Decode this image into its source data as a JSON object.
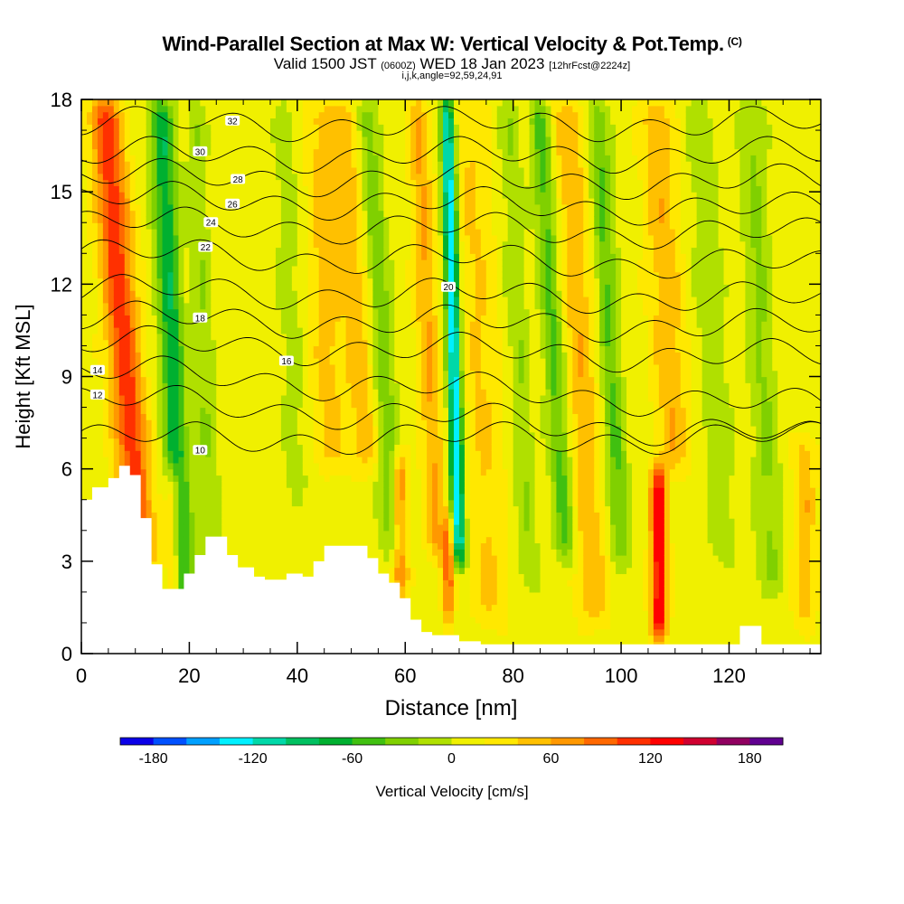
{
  "header": {
    "title": "Wind-Parallel Section at Max W: Vertical Velocity & Pot.Temp.",
    "copyright": "(C)",
    "valid_main": "Valid 1500 JST",
    "valid_z": "(0600Z)",
    "valid_date": "WED 18 Jan 2023",
    "valid_fcst": "[12hrFcst@2224z]",
    "indices": "i,j,k,angle=92,59,24,91"
  },
  "chart_data": {
    "type": "heatmap",
    "xlabel": "Distance [nm]",
    "ylabel": "Height [Kft MSL]",
    "xlim": [
      0,
      137
    ],
    "ylim": [
      0,
      18
    ],
    "x_ticks": [
      "0",
      "20",
      "40",
      "60",
      "80",
      "100",
      "120"
    ],
    "y_ticks": [
      "0",
      "3",
      "6",
      "9",
      "12",
      "15",
      "18"
    ],
    "colorbar": {
      "label": "Vertical Velocity [cm/s]",
      "ticks": [
        "-180",
        "-120",
        "-60",
        "0",
        "60",
        "120",
        "180"
      ],
      "range": [
        -200,
        200
      ],
      "colors": [
        "#0b00e8",
        "#0050ff",
        "#00a0ff",
        "#00f0ff",
        "#00d8a8",
        "#00c060",
        "#00b030",
        "#40c010",
        "#80d000",
        "#b0e000",
        "#f0f000",
        "#ffe800",
        "#ffc000",
        "#ff9800",
        "#ff6800",
        "#ff3000",
        "#ff0000",
        "#d00030",
        "#900060",
        "#600090"
      ]
    },
    "velocity_features": [
      {
        "x": 11,
        "z0": 3,
        "z1": 18,
        "slope": -0.45,
        "w": 100,
        "width": 3.0
      },
      {
        "x": 19,
        "z0": 1,
        "z1": 18,
        "slope": -0.25,
        "w": -90,
        "width": 2.2
      },
      {
        "x": 24,
        "z0": 3,
        "z1": 18,
        "slope": -0.2,
        "w": -30,
        "width": 2.0
      },
      {
        "x": 17,
        "z0": 1.5,
        "z1": 6,
        "slope": 0,
        "w": 70,
        "width": 1.4
      },
      {
        "x": 40,
        "z0": 5,
        "z1": 18,
        "slope": -0.2,
        "w": -20,
        "width": 2.5
      },
      {
        "x": 46,
        "z0": 6,
        "z1": 18,
        "slope": -0.15,
        "w": 35,
        "width": 3.0
      },
      {
        "x": 53,
        "z0": 6,
        "z1": 18,
        "slope": -0.35,
        "w": 40,
        "width": 3.0
      },
      {
        "x": 58,
        "z0": 3,
        "z1": 18,
        "slope": -0.35,
        "w": -50,
        "width": 2.2
      },
      {
        "x": 59,
        "z0": 2,
        "z1": 6.5,
        "slope": 0,
        "w": 75,
        "width": 1.5
      },
      {
        "x": 66,
        "z0": 3,
        "z1": 18,
        "slope": -0.25,
        "w": 50,
        "width": 2.0
      },
      {
        "x": 70,
        "z0": 3,
        "z1": 18,
        "slope": -0.15,
        "w": -150,
        "width": 1.3
      },
      {
        "x": 68,
        "z0": 1,
        "z1": 4.5,
        "slope": 0,
        "w": 80,
        "width": 1.0
      },
      {
        "x": 76,
        "z0": 1,
        "z1": 18,
        "slope": -0.25,
        "w": 30,
        "width": 3.5
      },
      {
        "x": 83,
        "z0": 2,
        "z1": 18,
        "slope": -0.25,
        "w": -30,
        "width": 2.0
      },
      {
        "x": 90,
        "z0": 3,
        "z1": 18,
        "slope": -0.35,
        "w": -60,
        "width": 2.0
      },
      {
        "x": 95,
        "z0": 1,
        "z1": 18,
        "slope": -0.3,
        "w": 45,
        "width": 3.0
      },
      {
        "x": 100,
        "z0": 3,
        "z1": 18,
        "slope": -0.3,
        "w": -55,
        "width": 2.0
      },
      {
        "x": 107,
        "z0": 0.5,
        "z1": 6,
        "slope": 0,
        "w": 125,
        "width": 1.5
      },
      {
        "x": 110,
        "z0": 6,
        "z1": 18,
        "slope": -0.3,
        "w": 45,
        "width": 3.0
      },
      {
        "x": 119,
        "z0": 3,
        "z1": 18,
        "slope": -0.3,
        "w": -25,
        "width": 3.0
      },
      {
        "x": 128,
        "z0": 2,
        "z1": 18,
        "slope": -0.25,
        "w": -35,
        "width": 2.5
      },
      {
        "x": 134,
        "z0": 1,
        "z1": 7,
        "slope": 0,
        "w": 45,
        "width": 2.0
      }
    ],
    "terrain": [
      [
        0,
        5.0
      ],
      [
        2,
        5.4
      ],
      [
        5,
        5.7
      ],
      [
        7,
        6.1
      ],
      [
        9,
        5.8
      ],
      [
        11,
        4.4
      ],
      [
        13,
        2.9
      ],
      [
        15,
        2.1
      ],
      [
        17,
        2.1
      ],
      [
        19,
        2.6
      ],
      [
        21,
        3.2
      ],
      [
        23,
        3.8
      ],
      [
        25,
        3.8
      ],
      [
        27,
        3.2
      ],
      [
        29,
        2.8
      ],
      [
        32,
        2.5
      ],
      [
        34,
        2.4
      ],
      [
        36,
        2.4
      ],
      [
        38,
        2.6
      ],
      [
        41,
        2.5
      ],
      [
        43,
        3.0
      ],
      [
        45,
        3.5
      ],
      [
        50,
        3.5
      ],
      [
        53,
        3.1
      ],
      [
        55,
        2.6
      ],
      [
        57,
        2.3
      ],
      [
        59,
        1.8
      ],
      [
        61,
        1.1
      ],
      [
        63,
        0.7
      ],
      [
        65,
        0.6
      ],
      [
        68,
        0.6
      ],
      [
        70,
        0.4
      ],
      [
        74,
        0.3
      ],
      [
        118,
        0.3
      ],
      [
        122,
        0.9
      ],
      [
        125,
        0.9
      ],
      [
        126,
        0.3
      ],
      [
        137,
        0.3
      ]
    ],
    "theta_contours": [
      {
        "value": "10",
        "z_left": 7.0,
        "z_right": 7.0,
        "lx": 22,
        "lz": 6.6
      },
      {
        "value": "12",
        "z_left": 8.3,
        "z_right": 7.0,
        "lx": 3,
        "lz": 8.4
      },
      {
        "value": "14",
        "z_left": 9.2,
        "z_right": 8.0,
        "lx": 3,
        "lz": 9.2
      },
      {
        "value": "16",
        "z_left": 10.1,
        "z_right": 9.6,
        "lx": 38,
        "lz": 9.5
      },
      {
        "value": "18",
        "z_left": 10.9,
        "z_right": 10.6,
        "lx": 22,
        "lz": 10.9
      },
      {
        "value": "20",
        "z_left": 11.8,
        "z_right": 11.5,
        "lx": 68,
        "lz": 11.9
      },
      {
        "value": "22",
        "z_left": 13.0,
        "z_right": 12.6,
        "lx": 23,
        "lz": 13.2
      },
      {
        "value": "24",
        "z_left": 14.0,
        "z_right": 13.6,
        "lx": 24,
        "lz": 14.0
      },
      {
        "value": "26",
        "z_left": 14.8,
        "z_right": 14.4,
        "lx": 28,
        "lz": 14.6
      },
      {
        "value": "28",
        "z_left": 15.5,
        "z_right": 15.3,
        "lx": 29,
        "lz": 15.4
      },
      {
        "value": "30",
        "z_left": 16.2,
        "z_right": 16.2,
        "lx": 22,
        "lz": 16.3
      },
      {
        "value": "32",
        "z_left": 17.2,
        "z_right": 17.2,
        "lx": 28,
        "lz": 17.3
      }
    ]
  }
}
